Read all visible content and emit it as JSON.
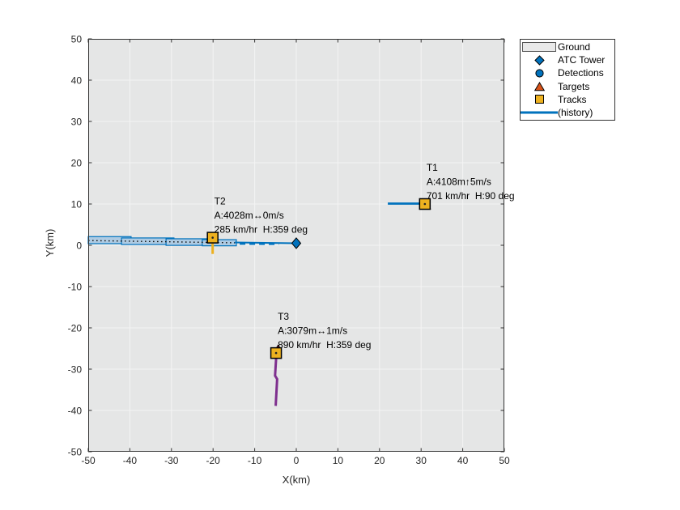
{
  "window": {
    "bg": "#ffffff"
  },
  "axes": {
    "xlabel": "X(km)",
    "ylabel": "Y(km)",
    "xticks": [
      -50,
      -40,
      -30,
      -20,
      -10,
      0,
      10,
      20,
      30,
      40,
      50
    ],
    "yticks": [
      -50,
      -40,
      -30,
      -20,
      -10,
      0,
      10,
      20,
      30,
      40,
      50
    ],
    "xlim": [
      -50,
      50
    ],
    "ylim": [
      -50,
      50
    ],
    "bg": "#e5e6e6",
    "grid_color": "#f4f4f4",
    "border_color": "#333333",
    "tick_label_color": "#262626"
  },
  "legend": {
    "border": "#333333",
    "items": [
      {
        "name": "ground",
        "label": "Ground",
        "icon": "patch",
        "color": "#e9e9e9"
      },
      {
        "name": "atc-tower",
        "label": "ATC Tower",
        "icon": "diamond",
        "color": "#0072BD"
      },
      {
        "name": "detections",
        "label": "Detections",
        "icon": "circle",
        "color": "#0072BD"
      },
      {
        "name": "targets",
        "label": "Targets",
        "icon": "triangle",
        "color": "#D95319"
      },
      {
        "name": "tracks",
        "label": "Tracks",
        "icon": "square",
        "color": "#EDB120"
      },
      {
        "name": "history",
        "label": "(history)",
        "icon": "line",
        "color": "#0072BD"
      }
    ]
  },
  "chart_data": {
    "type": "scatter",
    "title": "",
    "xlabel": "X(km)",
    "ylabel": "Y(km)",
    "xlim": [
      -50,
      50
    ],
    "ylim": [
      -50,
      50
    ],
    "grid": true,
    "legend_position": "outside-top-right",
    "tower": {
      "label": "ATC Tower",
      "x": 0,
      "y": 0.5,
      "color": "#0072BD"
    },
    "tracks": [
      {
        "id": "T1",
        "x": 30.9,
        "y": 10.0,
        "annotation": [
          "T1",
          "A:4108m↑5m/s",
          "701 km/hr  H:90 deg"
        ],
        "history_color": "#0072BD",
        "history_width": 2.8,
        "history": [
          [
            22.0,
            10.1
          ],
          [
            30.9,
            10.1
          ]
        ]
      },
      {
        "id": "T2",
        "x": -20.1,
        "y": 1.85,
        "annotation": [
          "T2",
          "A:4028m↔0m/s",
          "285 km/hr  H:359 deg"
        ],
        "history_color": "#EDB120",
        "history_width": 3,
        "history": [
          [
            -20.1,
            1.8
          ],
          [
            -20.1,
            -2.1
          ]
        ]
      },
      {
        "id": "T3",
        "x": -4.85,
        "y": -26.1,
        "annotation": [
          "T3",
          "A:3079m↔1m/s",
          "890 km/hr  H:359 deg"
        ],
        "history_color": "#7E2F8E",
        "history_width": 3,
        "history": [
          [
            -4.85,
            -27.5
          ],
          [
            -5.1,
            -31.6
          ],
          [
            -4.6,
            -32.4
          ],
          [
            -4.95,
            -38.9
          ]
        ]
      }
    ],
    "targets": [
      [
        31.5,
        9.4
      ],
      [
        -4.35,
        -24.8
      ]
    ],
    "detections_trail": {
      "fill": "#aecbe3",
      "edge": "#0072BD",
      "band_segments": [
        {
          "x1": -50.0,
          "x2": -39.7,
          "y": 1.25,
          "hw": 0.85
        },
        {
          "x1": -42.0,
          "x2": -29.4,
          "y": 0.98,
          "hw": 0.8
        },
        {
          "x1": -31.3,
          "x2": -20.2,
          "y": 0.78,
          "hw": 0.8
        },
        {
          "x1": -22.6,
          "x2": -14.4,
          "y": 0.62,
          "hw": 0.75
        }
      ],
      "dashes": [
        [
          -13.6,
          0.32
        ],
        [
          -4.2,
          0.25
        ]
      ]
    },
    "trajectory_dotted": [
      [
        -50,
        1.15
      ],
      [
        -14.8,
        0.6
      ]
    ],
    "approach_line": [
      [
        -14.8,
        0.68
      ],
      [
        0,
        0.5
      ]
    ],
    "colors": {
      "track_marker": "#EDB120",
      "target_marker": "#A2142F",
      "tower_marker": "#0072BD",
      "annotation_text": "#000000"
    }
  }
}
